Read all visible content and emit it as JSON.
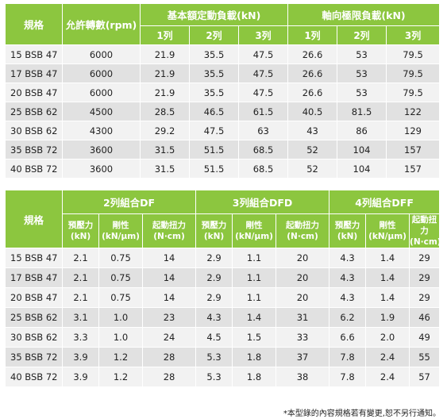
{
  "table1": {
    "header": {
      "model": "規格",
      "speed": "允許轉數(rpm)",
      "dynamic_load": "基本額定動負載(kN)",
      "axial_limit": "軸向極限負載(kN)",
      "sub": [
        "1列",
        "2列",
        "3列",
        "1列",
        "2列",
        "3列"
      ]
    },
    "rows": [
      {
        "model": "15 BSB 47",
        "speed": "6000",
        "dyn1": "21.9",
        "dyn2": "35.5",
        "dyn3": "47.5",
        "ax1": "26.6",
        "ax2": "53",
        "ax3": "79.5"
      },
      {
        "model": "17 BSB 47",
        "speed": "6000",
        "dyn1": "21.9",
        "dyn2": "35.5",
        "dyn3": "47.5",
        "ax1": "26.6",
        "ax2": "53",
        "ax3": "79.5"
      },
      {
        "model": "20 BSB 47",
        "speed": "6000",
        "dyn1": "21.9",
        "dyn2": "35.5",
        "dyn3": "47.5",
        "ax1": "26.6",
        "ax2": "53",
        "ax3": "79.5"
      },
      {
        "model": "25 BSB 62",
        "speed": "4500",
        "dyn1": "28.5",
        "dyn2": "46.5",
        "dyn3": "61.5",
        "ax1": "40.5",
        "ax2": "81.5",
        "ax3": "122"
      },
      {
        "model": "30 BSB 62",
        "speed": "4300",
        "dyn1": "29.2",
        "dyn2": "47.5",
        "dyn3": "63",
        "ax1": "43",
        "ax2": "86",
        "ax3": "129"
      },
      {
        "model": "35 BSB 72",
        "speed": "3600",
        "dyn1": "31.5",
        "dyn2": "51.5",
        "dyn3": "68.5",
        "ax1": "52",
        "ax2": "104",
        "ax3": "157"
      },
      {
        "model": "40 BSB 72",
        "speed": "3600",
        "dyn1": "31.5",
        "dyn2": "51.5",
        "dyn3": "68.5",
        "ax1": "52",
        "ax2": "104",
        "ax3": "157"
      }
    ]
  },
  "table2": {
    "header": {
      "model": "規格",
      "groups": [
        "2列組合DF",
        "3列組合DFD",
        "4列組合DFF"
      ],
      "preload": "預壓力\n(kN)",
      "stiffness": "剛性\n(kN/μm)",
      "torque": "起動扭力\n(N·cm)"
    },
    "rows": [
      {
        "model": "15 BSB 47",
        "v": [
          "2.1",
          "0.75",
          "14",
          "2.9",
          "1.1",
          "20",
          "4.3",
          "1.4",
          "29"
        ]
      },
      {
        "model": "17 BSB 47",
        "v": [
          "2.1",
          "0.75",
          "14",
          "2.9",
          "1.1",
          "20",
          "4.3",
          "1.4",
          "29"
        ]
      },
      {
        "model": "20 BSB 47",
        "v": [
          "2.1",
          "0.75",
          "14",
          "2.9",
          "1.1",
          "20",
          "4.3",
          "1.4",
          "29"
        ]
      },
      {
        "model": "25 BSB 62",
        "v": [
          "3.1",
          "1.0",
          "23",
          "4.3",
          "1.4",
          "31",
          "6.2",
          "1.9",
          "46"
        ]
      },
      {
        "model": "30 BSB 62",
        "v": [
          "3.3",
          "1.0",
          "24",
          "4.5",
          "1.5",
          "33",
          "6.6",
          "2.0",
          "49"
        ]
      },
      {
        "model": "35 BSB 72",
        "v": [
          "3.9",
          "1.2",
          "28",
          "5.3",
          "1.8",
          "37",
          "7.8",
          "2.4",
          "55"
        ]
      },
      {
        "model": "40 BSB 72",
        "v": [
          "3.9",
          "1.2",
          "28",
          "5.3",
          "1.8",
          "38",
          "7.8",
          "2.4",
          "57"
        ]
      }
    ]
  },
  "footnote": "*本型錄的內容規格若有變更,恕不另行通知。",
  "colors": {
    "header_green": "#8cc63f",
    "row_light": "#f2f2f2",
    "row_dark": "#e1e1e1"
  }
}
